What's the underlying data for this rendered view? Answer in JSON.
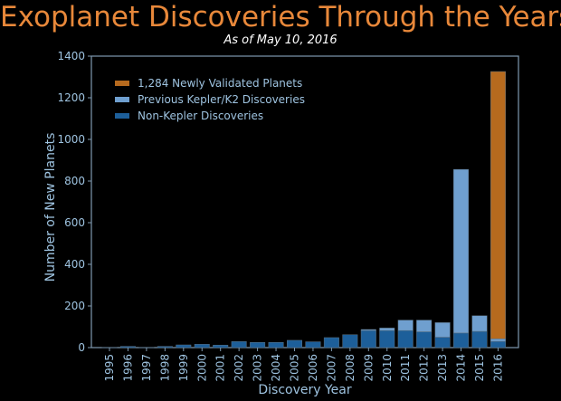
{
  "chart_data": {
    "type": "bar",
    "title": "Exoplanet Discoveries Through the Years",
    "subtitle": "As of May 10, 2016",
    "xlabel": "Discovery Year",
    "ylabel": "Number of New Planets",
    "ylim": [
      0,
      1400
    ],
    "yticks": [
      0,
      200,
      400,
      600,
      800,
      1000,
      1200,
      1400
    ],
    "stacked": true,
    "grid": false,
    "legend_position": "top-left",
    "categories": [
      "1995",
      "1996",
      "1997",
      "1998",
      "1999",
      "2000",
      "2001",
      "2002",
      "2003",
      "2004",
      "2005",
      "2006",
      "2007",
      "2008",
      "2009",
      "2010",
      "2011",
      "2012",
      "2013",
      "2014",
      "2015",
      "2016"
    ],
    "series": [
      {
        "name": "Non-Kepler Discoveries",
        "color": "#1d5f9a",
        "values": [
          1,
          6,
          1,
          6,
          13,
          16,
          12,
          29,
          25,
          25,
          35,
          28,
          48,
          62,
          82,
          82,
          82,
          76,
          50,
          70,
          78,
          30
        ]
      },
      {
        "name": "Previous Kepler/K2 Discoveries",
        "color": "#6f9fcf",
        "values": [
          0,
          0,
          0,
          0,
          0,
          0,
          0,
          0,
          0,
          0,
          0,
          0,
          0,
          0,
          5,
          12,
          50,
          56,
          70,
          786,
          75,
          12
        ]
      },
      {
        "name": "1,284 Newly Validated Planets",
        "color": "#b66a1e",
        "values": [
          0,
          0,
          0,
          0,
          0,
          0,
          0,
          0,
          0,
          0,
          0,
          0,
          0,
          0,
          0,
          0,
          0,
          0,
          0,
          0,
          0,
          1284
        ]
      }
    ],
    "legend_order": [
      "1,284 Newly Validated Planets",
      "Previous Kepler/K2 Discoveries",
      "Non-Kepler Discoveries"
    ]
  }
}
